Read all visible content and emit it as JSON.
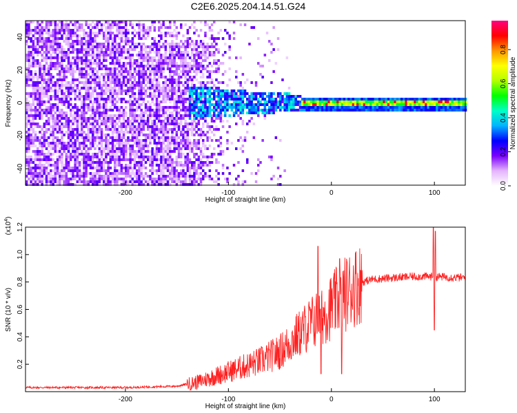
{
  "title": "C2E6.2025.204.14.51.G24",
  "chart_data": [
    {
      "type": "heatmap",
      "xlabel": "Height of straight line (km)",
      "ylabel": "Frequency (Hz)",
      "xlim": [
        -297,
        130
      ],
      "ylim": [
        -50,
        50
      ],
      "xticks": [
        -200,
        -100,
        0,
        100
      ],
      "yticks": [
        -40,
        -20,
        0,
        20,
        40
      ],
      "colorbar": {
        "label": "Normalized spectral amplitude",
        "ticks": [
          "0.0",
          "0.2",
          "0.4",
          "0.6",
          "0.8"
        ],
        "range": [
          0,
          0.97
        ],
        "colors": [
          "#ffffff",
          "#e4b4ff",
          "#7a00ff",
          "#0000ff",
          "#00b4ff",
          "#00ffc8",
          "#00ff00",
          "#b4ff00",
          "#ffff00",
          "#ff9600",
          "#ff0000",
          "#ff0080"
        ]
      },
      "structure": [
        {
          "x_from": -297,
          "x_to": -140,
          "pattern": "broadband noise, dense purple",
          "freq_range": [
            -50,
            50
          ]
        },
        {
          "x_from": -140,
          "x_to": -100,
          "pattern": "noise thinning to light purple",
          "freq_range": [
            -50,
            50
          ]
        },
        {
          "x_from": -140,
          "x_to": -30,
          "pattern": "blue/cyan signal band",
          "freq_range": [
            -15,
            12
          ]
        },
        {
          "x_from": -30,
          "x_to": 130,
          "pattern": "narrow signal line, green/yellow with red peaks",
          "freq_range": [
            -3,
            3
          ]
        }
      ]
    },
    {
      "type": "line",
      "xlabel": "Height of straight line (km)",
      "ylabel": "SNR (10 * v/v)",
      "scale_label": "(x10",
      "scale_exponent": "4",
      "xlim": [
        -297,
        130
      ],
      "ylim": [
        0,
        1.2
      ],
      "xticks": [
        -200,
        -100,
        0,
        100
      ],
      "yticks": [
        "0.2",
        "0.4",
        "0.6",
        "0.8",
        "1.0",
        "1.2"
      ],
      "series": [
        {
          "color": "#ff2020",
          "envelope": [
            {
              "x": -297,
              "y": 0.03
            },
            {
              "x": -250,
              "y": 0.03
            },
            {
              "x": -200,
              "y": 0.03
            },
            {
              "x": -150,
              "y": 0.04
            },
            {
              "x": -130,
              "y": 0.07
            },
            {
              "x": -110,
              "y": 0.12
            },
            {
              "x": -90,
              "y": 0.17
            },
            {
              "x": -70,
              "y": 0.22
            },
            {
              "x": -50,
              "y": 0.29
            },
            {
              "x": -40,
              "y": 0.36
            },
            {
              "x": -30,
              "y": 0.43
            },
            {
              "x": -20,
              "y": 0.5
            },
            {
              "x": -10,
              "y": 0.55
            },
            {
              "x": 0,
              "y": 0.62
            },
            {
              "x": 10,
              "y": 0.69
            },
            {
              "x": 20,
              "y": 0.76
            },
            {
              "x": 30,
              "y": 0.8
            },
            {
              "x": 40,
              "y": 0.82
            },
            {
              "x": 60,
              "y": 0.83
            },
            {
              "x": 80,
              "y": 0.84
            },
            {
              "x": 100,
              "y": 0.84
            },
            {
              "x": 130,
              "y": 0.83
            }
          ],
          "spikes": [
            {
              "x": -13,
              "y": 1.06
            },
            {
              "x": -10,
              "y": 0.13
            },
            {
              "x": 8,
              "y": 0.97
            },
            {
              "x": 10,
              "y": 0.13
            },
            {
              "x": 99,
              "y": 1.2
            },
            {
              "x": 100,
              "y": 0.45
            },
            {
              "x": 101,
              "y": 1.17
            }
          ]
        }
      ]
    }
  ]
}
